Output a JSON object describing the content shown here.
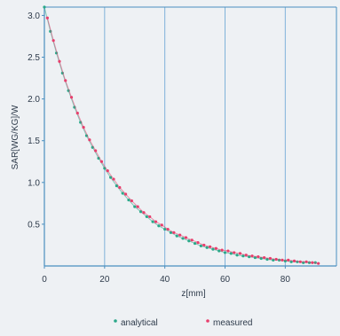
{
  "chart_data": {
    "type": "scatter",
    "title": "",
    "xlabel": "z[mm]",
    "ylabel": "SAR[WG/KG]/W",
    "xlim": [
      0,
      97
    ],
    "ylim": [
      0,
      3.1
    ],
    "xticks": [
      0,
      20,
      40,
      60,
      80
    ],
    "yticks": [
      0.5,
      1.0,
      1.5,
      2.0,
      2.5,
      3.0
    ],
    "xtick_labels": [
      "0",
      "20",
      "40",
      "60",
      "80"
    ],
    "ytick_labels": [
      "0.5",
      "1.0",
      "1.5",
      "2.0",
      "2.5",
      "3.0"
    ],
    "grid": "vertical",
    "legend_position": "bottom",
    "series": [
      {
        "name": "analytical",
        "color": "#2aa889",
        "x": [
          0,
          2,
          4,
          6,
          8,
          10,
          12,
          14,
          16,
          18,
          20,
          22,
          24,
          26,
          28,
          30,
          32,
          34,
          36,
          38,
          40,
          42,
          44,
          46,
          48,
          50,
          52,
          54,
          56,
          58,
          60,
          62,
          64,
          66,
          68,
          70,
          72,
          74,
          76,
          78,
          80,
          82,
          84,
          86,
          88,
          90
        ],
        "y": [
          3.1,
          2.81,
          2.55,
          2.31,
          2.1,
          1.9,
          1.72,
          1.56,
          1.42,
          1.29,
          1.17,
          1.06,
          0.96,
          0.87,
          0.79,
          0.71,
          0.65,
          0.59,
          0.53,
          0.48,
          0.44,
          0.4,
          0.36,
          0.33,
          0.3,
          0.27,
          0.24,
          0.22,
          0.2,
          0.18,
          0.16,
          0.15,
          0.13,
          0.12,
          0.11,
          0.1,
          0.09,
          0.08,
          0.07,
          0.07,
          0.06,
          0.05,
          0.05,
          0.04,
          0.04,
          0.04
        ]
      },
      {
        "name": "measured",
        "color": "#e83e6c",
        "x": [
          1,
          3,
          5,
          7,
          9,
          11,
          13,
          15,
          17,
          19,
          21,
          23,
          25,
          27,
          29,
          31,
          33,
          35,
          37,
          39,
          41,
          43,
          45,
          47,
          49,
          51,
          53,
          55,
          57,
          59,
          61,
          63,
          65,
          67,
          69,
          71,
          73,
          75,
          77,
          79,
          81,
          83,
          85,
          87,
          89,
          91
        ],
        "y": [
          2.97,
          2.7,
          2.45,
          2.22,
          2.02,
          1.83,
          1.66,
          1.51,
          1.38,
          1.25,
          1.14,
          1.04,
          0.94,
          0.86,
          0.78,
          0.71,
          0.64,
          0.59,
          0.53,
          0.49,
          0.44,
          0.4,
          0.37,
          0.34,
          0.31,
          0.28,
          0.25,
          0.23,
          0.21,
          0.19,
          0.18,
          0.16,
          0.15,
          0.13,
          0.12,
          0.11,
          0.1,
          0.09,
          0.08,
          0.07,
          0.07,
          0.06,
          0.05,
          0.05,
          0.04,
          0.03
        ]
      }
    ]
  },
  "colors": {
    "grid": "#7fb2d9",
    "axis": "#4a8fbf",
    "text": "#2d3a4a"
  }
}
